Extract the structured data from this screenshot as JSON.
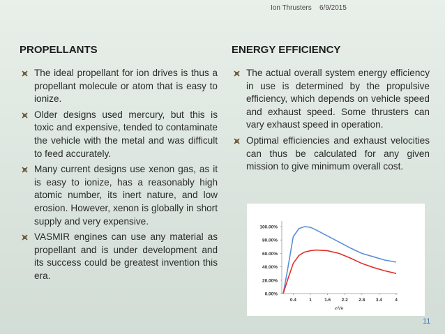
{
  "header": {
    "title": "Ion Thrusters",
    "date": "6/9/2015"
  },
  "left": {
    "heading": "PROPELLANTS",
    "bullets": [
      "The ideal propellant for ion drives is thus a propellant molecule or atom that is easy to ionize.",
      "Older designs used mercury, but this is toxic and expensive, tended to contaminate the vehicle with the metal and was difficult to feed accurately.",
      "Many current designs use xenon gas, as it is easy to ionize, has a reasonably high atomic number, its inert nature, and low erosion. However, xenon is globally in short supply and very expensive.",
      "VASMIR engines can use any material as propellant and is under development and its success could be greatest invention this era."
    ]
  },
  "right": {
    "heading": "ENERGY EFFICIENCY",
    "bullets": [
      "The actual overall system energy efficiency in use is determined by the propulsive efficiency, which depends on vehicle speed and exhaust speed. Some thrusters can vary exhaust speed in operation.",
      "Optimal efficiencies and exhaust velocities can thus be calculated for any given mission to give minimum overall cost."
    ]
  },
  "chart_data": {
    "type": "line",
    "xlabel": "v/Ve",
    "x": [
      0.05,
      0.2,
      0.4,
      0.6,
      0.8,
      1.0,
      1.2,
      1.6,
      2.0,
      2.4,
      2.8,
      3.2,
      3.6,
      4.0
    ],
    "series": [
      {
        "color": "#5b8fd6",
        "values": [
          0,
          35,
          85,
          97,
          100,
          99,
          95,
          86,
          77,
          68,
          60,
          55,
          50,
          47
        ]
      },
      {
        "color": "#e0302a",
        "values": [
          0,
          20,
          45,
          57,
          62,
          64,
          65,
          64,
          60,
          53,
          45,
          39,
          34,
          30
        ]
      }
    ],
    "xlim": [
      0,
      4
    ],
    "ylim": [
      0,
      100
    ],
    "xticks": [
      0.4,
      1,
      1.6,
      2.2,
      2.8,
      3.4,
      4
    ],
    "yticks": [
      {
        "value": 0,
        "label": "0.00%"
      },
      {
        "value": 20,
        "label": "20.00%"
      },
      {
        "value": 40,
        "label": "40.00%"
      },
      {
        "value": 60,
        "label": "60.00%"
      },
      {
        "value": 80,
        "label": "80.00%"
      },
      {
        "value": 100,
        "label": "100.00%"
      }
    ]
  },
  "page_number": "11"
}
